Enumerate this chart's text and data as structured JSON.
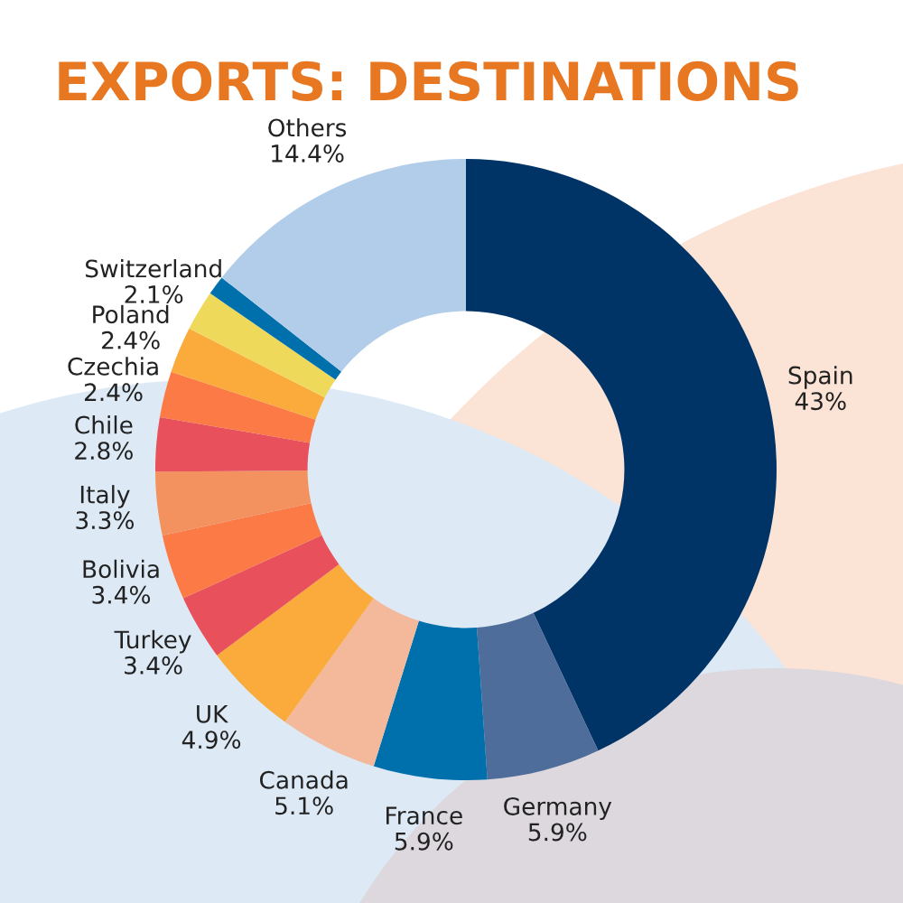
{
  "chart_data": {
    "type": "donut",
    "title": "EXPORTS: DESTINATIONS",
    "categories": [
      "Spain",
      "Germany",
      "France",
      "Canada",
      "UK",
      "Turkey",
      "Bolivia",
      "Italy",
      "Chile",
      "Czechia",
      "Poland",
      "Switzerland",
      null,
      "Others"
    ],
    "values": [
      43,
      5.9,
      5.9,
      5.1,
      4.9,
      3.4,
      3.4,
      3.3,
      2.8,
      2.4,
      2.4,
      2.1,
      1.0,
      14.4
    ],
    "colors": [
      "#003366",
      "#4f6d9a",
      "#0070ad",
      "#f4b89a",
      "#fbab3c",
      "#e8505b",
      "#fb7a45",
      "#f3925e",
      "#e8505b",
      "#fb7a45",
      "#fbab3c",
      "#eed95b",
      "#0070ad",
      "#b2cde9"
    ],
    "value_labels": [
      "43%",
      "5.9%",
      "5.9%",
      "5.1%",
      "4.9%",
      "3.4%",
      "3.4%",
      "3.3%",
      "2.8%",
      "2.4%",
      "2.4%",
      "2.1%",
      null,
      "14.4%"
    ]
  }
}
